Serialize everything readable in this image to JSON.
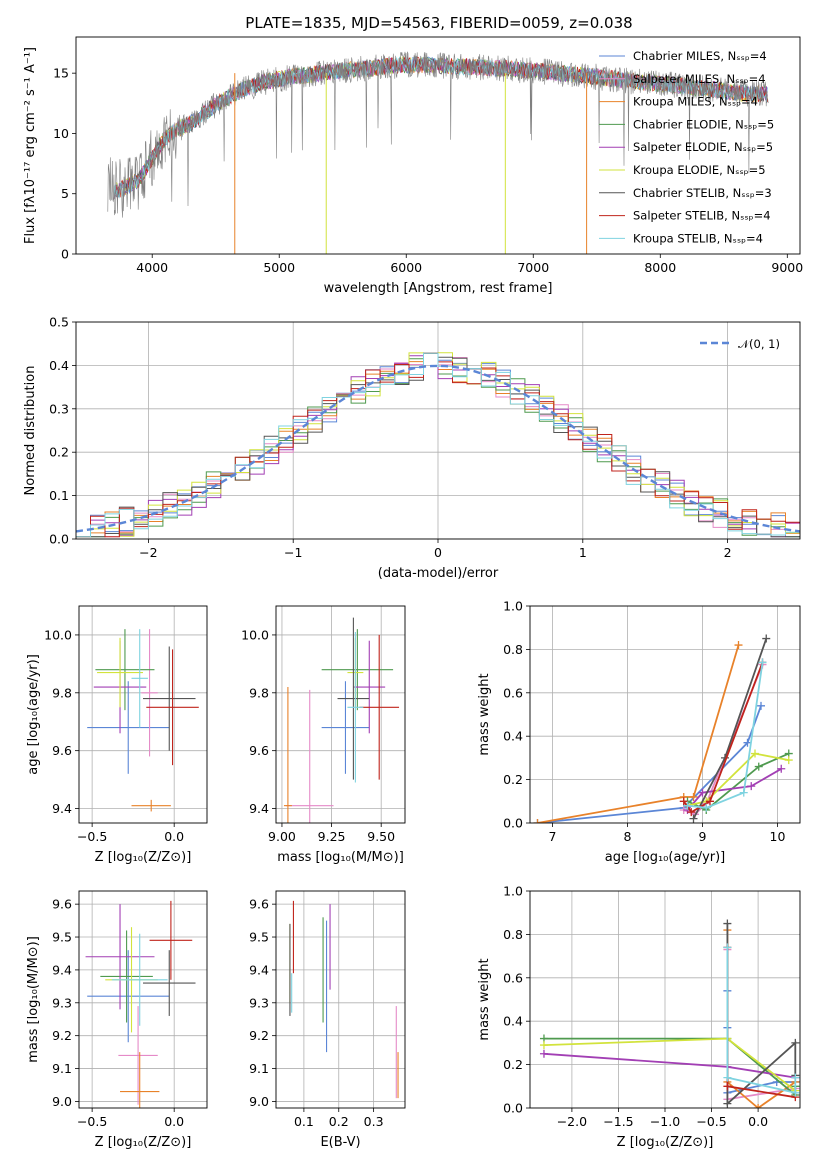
{
  "series_colors": [
    "#5b86d6",
    "#e58ac8",
    "#e8822a",
    "#4f9a4f",
    "#a23fb4",
    "#d2e33c",
    "#555555",
    "#c0241c",
    "#7fd3e0"
  ],
  "chart_data": [
    {
      "id": "spectrum",
      "type": "line",
      "title": "PLATE=1835, MJD=54563, FIBERID=0059, z=0.038",
      "xlabel": "wavelength [Angstrom, rest frame]",
      "ylabel": "Flux [fλ10⁻¹⁷ erg cm⁻² s⁻¹ A⁻¹]",
      "xlim": [
        3400,
        9100
      ],
      "ylim": [
        0,
        18
      ],
      "xticks": [
        4000,
        5000,
        6000,
        7000,
        8000,
        9000
      ],
      "yticks": [
        0,
        5,
        10,
        15
      ],
      "legend_position": "top-right",
      "legend": [
        "Chabrier MILES, Nₛₛₚ=4",
        "Salpeter MILES, Nₛₛₚ=4",
        "Kroupa MILES, Nₛₛₚ=4",
        "Chabrier ELODIE, Nₛₛₚ=5",
        "Salpeter ELODIE, Nₛₛₚ=5",
        "Kroupa ELODIE, Nₛₛₚ=5",
        "Chabrier STELIB, Nₛₛₚ=3",
        "Salpeter STELIB, Nₛₛₚ=4",
        "Kroupa STELIB, Nₛₛₚ=4"
      ],
      "continuum": {
        "x": [
          3650,
          3700,
          3800,
          3900,
          4000,
          4100,
          4200,
          4300,
          4400,
          4500,
          4700,
          4900,
          5100,
          5400,
          5700,
          6000,
          6300,
          6600,
          7000,
          7400,
          7800,
          8200,
          8600,
          8850
        ],
        "y": [
          6.0,
          5.2,
          5.6,
          6.2,
          8.0,
          9.6,
          10.4,
          10.8,
          11.6,
          12.4,
          13.6,
          14.3,
          14.7,
          15.1,
          15.4,
          15.7,
          15.6,
          15.5,
          15.2,
          14.8,
          14.3,
          13.9,
          13.4,
          13.2
        ]
      }
    },
    {
      "id": "residuals",
      "type": "step",
      "xlabel": "(data-model)/error",
      "ylabel": "Normed distribution",
      "xlim": [
        -2.5,
        2.5
      ],
      "ylim": [
        0,
        0.5
      ],
      "xticks": [
        -2,
        -1,
        0,
        1,
        2
      ],
      "yticks": [
        0.0,
        0.1,
        0.2,
        0.3,
        0.4,
        0.5
      ],
      "legend": [
        "𝒩(0, 1)"
      ],
      "legend_position": "top-right"
    },
    {
      "id": "age_vs_Z",
      "type": "errorbar",
      "xlabel": "Z [log₁₀(Z/Z⊙)]",
      "ylabel": "age  [log₁₀(age/yr)]",
      "xlim": [
        -0.58,
        0.2
      ],
      "ylim": [
        9.35,
        10.1
      ],
      "xticks": [
        -0.5,
        0.0
      ],
      "yticks": [
        9.4,
        9.6,
        9.8,
        10.0
      ],
      "points": [
        {
          "x": -0.28,
          "xerr": 0.25,
          "y": 9.68,
          "yerr": 0.16
        },
        {
          "x": -0.15,
          "xerr": 0.05,
          "y": 9.8,
          "yerr": 0.22
        },
        {
          "x": -0.14,
          "xerr": 0.12,
          "y": 9.41,
          "yerr": 0.02
        },
        {
          "x": -0.3,
          "xerr": 0.18,
          "y": 9.88,
          "yerr": 0.14
        },
        {
          "x": -0.33,
          "xerr": 0.16,
          "y": 9.82,
          "yerr": 0.16
        },
        {
          "x": -0.33,
          "xerr": 0.14,
          "y": 9.87,
          "yerr": 0.12
        },
        {
          "x": -0.03,
          "xerr": 0.16,
          "y": 9.78,
          "yerr": 0.18
        },
        {
          "x": -0.01,
          "xerr": 0.16,
          "y": 9.75,
          "yerr": 0.2
        },
        {
          "x": -0.21,
          "xerr": 0.05,
          "y": 9.85,
          "yerr": 0.17
        }
      ]
    },
    {
      "id": "age_vs_mass",
      "type": "errorbar",
      "xlabel": "mass [log₁₀(M/M⊙)]",
      "ylabel": "",
      "xlim": [
        8.97,
        9.62
      ],
      "ylim": [
        9.35,
        10.1
      ],
      "xticks": [
        9.0,
        9.25,
        9.5
      ],
      "yticks": [
        9.4,
        9.6,
        9.8,
        10.0
      ],
      "points": [
        {
          "x": 9.32,
          "xerr": 0.12,
          "y": 9.68,
          "yerr": 0.16
        },
        {
          "x": 9.14,
          "xerr": 0.12,
          "y": 9.41,
          "yerr": 0.4
        },
        {
          "x": 9.03,
          "xerr": 0.02,
          "y": 9.41,
          "yerr": 0.41
        },
        {
          "x": 9.38,
          "xerr": 0.18,
          "y": 9.88,
          "yerr": 0.14
        },
        {
          "x": 9.44,
          "xerr": 0.08,
          "y": 9.82,
          "yerr": 0.16
        },
        {
          "x": 9.37,
          "xerr": 0.04,
          "y": 9.87,
          "yerr": 0.12
        },
        {
          "x": 9.36,
          "xerr": 0.08,
          "y": 9.78,
          "yerr": 0.28
        },
        {
          "x": 9.49,
          "xerr": 0.1,
          "y": 9.75,
          "yerr": 0.25
        },
        {
          "x": 9.37,
          "xerr": 0.04,
          "y": 9.75,
          "yerr": 0.26
        }
      ]
    },
    {
      "id": "massweight_vs_age",
      "type": "line",
      "xlabel": "age  [log₁₀(age/yr)]",
      "ylabel": "mass weight",
      "xlim": [
        6.7,
        10.3
      ],
      "ylim": [
        0,
        1
      ],
      "xticks": [
        7,
        8,
        9,
        10
      ],
      "yticks": [
        0.0,
        0.2,
        0.4,
        0.6,
        0.8,
        1.0
      ],
      "series": [
        {
          "x": [
            6.8,
            8.75,
            9.6,
            9.78
          ],
          "y": [
            0.0,
            0.07,
            0.37,
            0.54
          ]
        },
        {
          "x": [
            8.75,
            8.9,
            9.05,
            9.8
          ],
          "y": [
            0.06,
            0.04,
            0.09,
            0.73
          ]
        },
        {
          "x": [
            6.8,
            8.75,
            8.88,
            9.48
          ],
          "y": [
            0.0,
            0.12,
            0.12,
            0.82
          ]
        },
        {
          "x": [
            8.8,
            9.05,
            9.75,
            10.15
          ],
          "y": [
            0.1,
            0.06,
            0.26,
            0.32
          ]
        },
        {
          "x": [
            8.8,
            9.0,
            9.65,
            10.05
          ],
          "y": [
            0.06,
            0.14,
            0.17,
            0.25
          ]
        },
        {
          "x": [
            8.8,
            9.05,
            9.7,
            10.15
          ],
          "y": [
            0.08,
            0.1,
            0.32,
            0.29
          ]
        },
        {
          "x": [
            8.88,
            9.3,
            9.85
          ],
          "y": [
            0.02,
            0.3,
            0.85
          ]
        },
        {
          "x": [
            8.75,
            8.85,
            9.1,
            9.8
          ],
          "y": [
            0.1,
            0.05,
            0.1,
            0.74
          ]
        },
        {
          "x": [
            8.8,
            9.05,
            9.55,
            9.8
          ],
          "y": [
            0.08,
            0.07,
            0.14,
            0.74
          ]
        }
      ]
    },
    {
      "id": "mass_vs_Z",
      "type": "errorbar",
      "xlabel": "Z [log₁₀(Z/Z⊙)]",
      "ylabel": "mass [log₁₀(M/M⊙)]",
      "xlim": [
        -0.58,
        0.2
      ],
      "ylim": [
        8.98,
        9.64
      ],
      "xticks": [
        -0.5,
        0.0
      ],
      "yticks": [
        9.0,
        9.1,
        9.2,
        9.3,
        9.4,
        9.5,
        9.6
      ],
      "points": [
        {
          "x": -0.28,
          "xerr": 0.25,
          "y": 9.32,
          "yerr": 0.14
        },
        {
          "x": -0.22,
          "xerr": 0.12,
          "y": 9.14,
          "yerr": 0.15
        },
        {
          "x": -0.21,
          "xerr": 0.12,
          "y": 9.03,
          "yerr": 0.12
        },
        {
          "x": -0.29,
          "xerr": 0.16,
          "y": 9.38,
          "yerr": 0.14
        },
        {
          "x": -0.33,
          "xerr": 0.21,
          "y": 9.44,
          "yerr": 0.16
        },
        {
          "x": -0.26,
          "xerr": 0.16,
          "y": 9.37,
          "yerr": 0.16
        },
        {
          "x": -0.03,
          "xerr": 0.16,
          "y": 9.36,
          "yerr": 0.1
        },
        {
          "x": -0.02,
          "xerr": 0.13,
          "y": 9.49,
          "yerr": 0.12
        },
        {
          "x": -0.21,
          "xerr": 0.17,
          "y": 9.37,
          "yerr": 0.14
        }
      ]
    },
    {
      "id": "mass_vs_EBV",
      "type": "errorbar",
      "xlabel": "E(B-V)",
      "ylabel": "",
      "xlim": [
        0.02,
        0.39
      ],
      "ylim": [
        8.98,
        9.64
      ],
      "xticks": [
        0.1,
        0.2,
        0.3
      ],
      "yticks": [
        9.0,
        9.1,
        9.2,
        9.3,
        9.4,
        9.5,
        9.6
      ],
      "points": [
        {
          "x": 0.165,
          "y": 9.35,
          "yerr": 0.2
        },
        {
          "x": 0.365,
          "y": 9.15,
          "yerr": 0.14
        },
        {
          "x": 0.37,
          "y": 9.08,
          "yerr": 0.07
        },
        {
          "x": 0.155,
          "y": 9.4,
          "yerr": 0.16
        },
        {
          "x": 0.175,
          "y": 9.47,
          "yerr": 0.13
        },
        {
          "x": 0.06,
          "y": 9.42,
          "yerr": 0.12
        },
        {
          "x": 0.06,
          "y": 9.4,
          "yerr": 0.14
        },
        {
          "x": 0.07,
          "y": 9.5,
          "yerr": 0.11
        },
        {
          "x": 0.065,
          "y": 9.33,
          "yerr": 0.06
        }
      ]
    },
    {
      "id": "massweight_vs_Z",
      "type": "line",
      "xlabel": "Z [log₁₀(Z/Z⊙)]",
      "ylabel": "mass weight",
      "xlim": [
        -2.45,
        0.45
      ],
      "ylim": [
        0,
        1
      ],
      "xticks": [
        -2.0,
        -1.5,
        -1.0,
        -0.5,
        0.0
      ],
      "yticks": [
        0.0,
        0.2,
        0.4,
        0.6,
        0.8,
        1.0
      ],
      "series": [
        {
          "x": [
            -0.33,
            -0.33,
            -0.33,
            0.2,
            0.4
          ],
          "y": [
            0.54,
            0.37,
            0.07,
            0.12,
            0.12
          ]
        },
        {
          "x": [
            -0.33,
            -0.33,
            0.4,
            0.4
          ],
          "y": [
            0.73,
            0.04,
            0.09,
            0.06
          ]
        },
        {
          "x": [
            -0.33,
            -0.33,
            0.0,
            0.4
          ],
          "y": [
            0.82,
            0.12,
            0.0,
            0.12
          ]
        },
        {
          "x": [
            -2.3,
            -0.33,
            0.4,
            0.4
          ],
          "y": [
            0.32,
            0.32,
            0.06,
            0.1
          ]
        },
        {
          "x": [
            -2.3,
            -0.33,
            0.4
          ],
          "y": [
            0.25,
            0.19,
            0.14
          ]
        },
        {
          "x": [
            -2.3,
            -0.33,
            0.4
          ],
          "y": [
            0.29,
            0.32,
            0.08
          ]
        },
        {
          "x": [
            -0.33,
            -0.33,
            0.4,
            0.4
          ],
          "y": [
            0.85,
            0.02,
            0.3,
            0.15
          ]
        },
        {
          "x": [
            -0.33,
            -0.33,
            0.4
          ],
          "y": [
            0.74,
            0.1,
            0.05
          ]
        },
        {
          "x": [
            -0.33,
            -0.33,
            0.4,
            0.4
          ],
          "y": [
            0.74,
            0.14,
            0.07,
            0.14
          ]
        }
      ]
    }
  ]
}
